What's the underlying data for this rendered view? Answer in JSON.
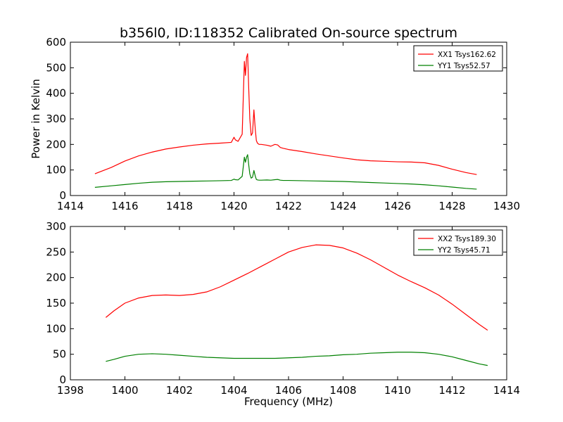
{
  "title": "b356l0, ID:118352 Calibrated On-source spectrum",
  "chart_data": [
    {
      "type": "line",
      "ylabel": "Power in Kelvin",
      "xlabel": "",
      "xlim": [
        1414,
        1430
      ],
      "ylim": [
        0,
        600
      ],
      "xticks": [
        "1414",
        "1416",
        "1418",
        "1420",
        "1422",
        "1424",
        "1426",
        "1428",
        "1430"
      ],
      "yticks": [
        "0",
        "100",
        "200",
        "300",
        "400",
        "500",
        "600"
      ],
      "legend_position": "top-right",
      "grid": false,
      "series": [
        {
          "name": "XX1 Tsys162.62",
          "color": "#ff0000",
          "x": [
            1414.9,
            1415.5,
            1416.0,
            1416.5,
            1417.0,
            1417.5,
            1418.0,
            1418.5,
            1419.0,
            1419.5,
            1419.9,
            1420.0,
            1420.05,
            1420.15,
            1420.3,
            1420.38,
            1420.42,
            1420.46,
            1420.5,
            1420.54,
            1420.58,
            1420.63,
            1420.68,
            1420.73,
            1420.78,
            1420.82,
            1420.86,
            1420.92,
            1421.0,
            1421.2,
            1421.35,
            1421.5,
            1421.6,
            1421.7,
            1421.8,
            1422.0,
            1422.5,
            1423.0,
            1423.5,
            1424.0,
            1424.5,
            1425.0,
            1425.5,
            1426.0,
            1426.5,
            1427.0,
            1427.5,
            1428.0,
            1428.5,
            1428.9
          ],
          "y": [
            85,
            110,
            135,
            155,
            170,
            182,
            190,
            197,
            202,
            205,
            208,
            228,
            218,
            212,
            240,
            525,
            470,
            540,
            555,
            420,
            300,
            235,
            245,
            335,
            260,
            215,
            205,
            200,
            200,
            197,
            193,
            200,
            198,
            188,
            185,
            180,
            172,
            163,
            155,
            147,
            140,
            136,
            134,
            132,
            131,
            128,
            118,
            103,
            90,
            82
          ]
        },
        {
          "name": "YY1 Tsys52.57",
          "color": "#008000",
          "x": [
            1414.9,
            1415.5,
            1416.0,
            1416.5,
            1417.0,
            1417.5,
            1418.0,
            1418.5,
            1419.0,
            1419.5,
            1419.9,
            1420.0,
            1420.05,
            1420.15,
            1420.3,
            1420.38,
            1420.42,
            1420.46,
            1420.5,
            1420.54,
            1420.58,
            1420.63,
            1420.68,
            1420.73,
            1420.78,
            1420.82,
            1420.86,
            1420.92,
            1421.0,
            1421.2,
            1421.35,
            1421.5,
            1421.6,
            1421.7,
            1421.8,
            1422.0,
            1422.5,
            1423.0,
            1423.5,
            1424.0,
            1424.5,
            1425.0,
            1425.5,
            1426.0,
            1426.5,
            1427.0,
            1427.5,
            1428.0,
            1428.5,
            1428.9
          ],
          "y": [
            32,
            38,
            43,
            48,
            52,
            54,
            55,
            56,
            57,
            58,
            59,
            64,
            62,
            61,
            75,
            150,
            130,
            150,
            160,
            120,
            85,
            68,
            72,
            98,
            76,
            63,
            61,
            60,
            60,
            61,
            60,
            62,
            63,
            60,
            59,
            59,
            58,
            57,
            56,
            55,
            53,
            51,
            49,
            47,
            45,
            42,
            38,
            33,
            28,
            25
          ]
        }
      ]
    },
    {
      "type": "line",
      "ylabel": "",
      "xlabel": "Frequency (MHz)",
      "xlim": [
        1398,
        1414
      ],
      "ylim": [
        0,
        300
      ],
      "xticks": [
        "1398",
        "1400",
        "1402",
        "1404",
        "1406",
        "1408",
        "1410",
        "1412",
        "1414"
      ],
      "yticks": [
        "0",
        "50",
        "100",
        "150",
        "200",
        "250",
        "300"
      ],
      "legend_position": "top-right",
      "grid": false,
      "series": [
        {
          "name": "XX2 Tsys189.30",
          "color": "#ff0000",
          "x": [
            1399.3,
            1399.6,
            1400.0,
            1400.5,
            1401.0,
            1401.5,
            1402.0,
            1402.5,
            1403.0,
            1403.5,
            1404.0,
            1404.5,
            1405.0,
            1405.5,
            1406.0,
            1406.5,
            1407.0,
            1407.5,
            1408.0,
            1408.5,
            1409.0,
            1409.5,
            1410.0,
            1410.5,
            1411.0,
            1411.5,
            1412.0,
            1412.5,
            1413.0,
            1413.3
          ],
          "y": [
            122,
            135,
            150,
            160,
            165,
            166,
            165,
            167,
            172,
            182,
            195,
            208,
            222,
            236,
            250,
            259,
            264,
            263,
            258,
            248,
            235,
            220,
            205,
            192,
            180,
            166,
            148,
            128,
            108,
            97
          ]
        },
        {
          "name": "YY2 Tsys45.71",
          "color": "#008000",
          "x": [
            1399.3,
            1399.6,
            1400.0,
            1400.5,
            1401.0,
            1401.5,
            1402.0,
            1402.5,
            1403.0,
            1403.5,
            1404.0,
            1404.5,
            1405.0,
            1405.5,
            1406.0,
            1406.5,
            1407.0,
            1407.5,
            1408.0,
            1408.5,
            1409.0,
            1409.5,
            1410.0,
            1410.5,
            1411.0,
            1411.5,
            1412.0,
            1412.5,
            1413.0,
            1413.3
          ],
          "y": [
            36,
            40,
            46,
            50,
            51,
            50,
            48,
            46,
            44,
            43,
            42,
            42,
            42,
            42,
            43,
            44,
            46,
            47,
            49,
            50,
            52,
            53,
            54,
            54,
            53,
            50,
            45,
            38,
            31,
            28
          ]
        }
      ]
    }
  ]
}
